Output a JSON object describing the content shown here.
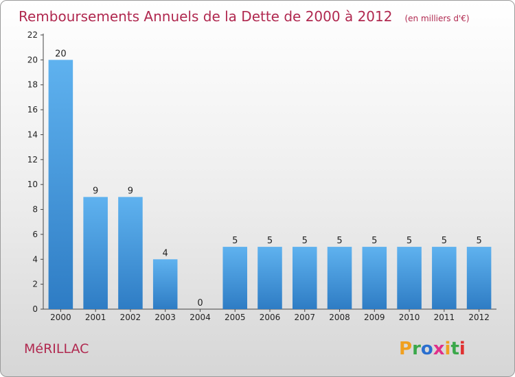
{
  "chart_data": {
    "type": "bar",
    "title": "Remboursements Annuels de la Dette de 2000 à 2012",
    "unit_note": "(en milliers d'€)",
    "categories": [
      "2000",
      "2001",
      "2002",
      "2003",
      "2004",
      "2005",
      "2006",
      "2007",
      "2008",
      "2009",
      "2010",
      "2011",
      "2012"
    ],
    "values": [
      20,
      9,
      9,
      4,
      0,
      5,
      5,
      5,
      5,
      5,
      5,
      5,
      5
    ],
    "xlabel": "",
    "ylabel": "",
    "ylim": [
      0,
      22
    ],
    "yticks": [
      0,
      2,
      4,
      6,
      8,
      10,
      12,
      14,
      16,
      18,
      20,
      22
    ],
    "grid": false,
    "legend": "none",
    "bar_color": "#3f8fd8"
  },
  "footer": {
    "commune": "MéRILLAC",
    "logo": "Proxiti",
    "logo_colors": [
      "#f0a020",
      "#3aa84a",
      "#2a6fcf",
      "#e0308a",
      "#f0a020",
      "#3aa84a",
      "#e03030"
    ]
  }
}
